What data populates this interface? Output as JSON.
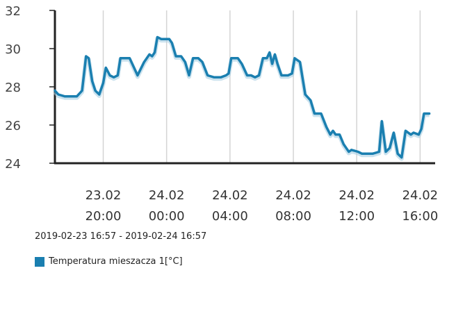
{
  "chart_data": {
    "type": "line",
    "title": "",
    "xlabel": "",
    "ylabel": "",
    "ylim": [
      24,
      32
    ],
    "yticks": [
      "32",
      "30",
      "28",
      "26",
      "24"
    ],
    "xlim": [
      "2019-02-23 16:57",
      "2019-02-24 16:57"
    ],
    "xticks": [
      {
        "date": "23.02",
        "time": "20:00",
        "at": "2019-02-23 20:00"
      },
      {
        "date": "24.02",
        "time": "00:00",
        "at": "2019-02-24 00:00"
      },
      {
        "date": "24.02",
        "time": "04:00",
        "at": "2019-02-24 04:00"
      },
      {
        "date": "24.02",
        "time": "08:00",
        "at": "2019-02-24 08:00"
      },
      {
        "date": "24.02",
        "time": "12:00",
        "at": "2019-02-24 12:00"
      },
      {
        "date": "24.02",
        "time": "16:00",
        "at": "2019-02-24 16:00"
      }
    ],
    "grid": "vertical",
    "series": [
      {
        "name": "Temperatura mieszacza 1[°C]",
        "color": "#1a7fb0",
        "points": [
          [
            "2019-02-23 16:57",
            27.8
          ],
          [
            "2019-02-23 17:10",
            27.6
          ],
          [
            "2019-02-23 17:35",
            27.5
          ],
          [
            "2019-02-23 18:00",
            27.5
          ],
          [
            "2019-02-23 18:20",
            27.5
          ],
          [
            "2019-02-23 18:40",
            27.8
          ],
          [
            "2019-02-23 18:55",
            29.6
          ],
          [
            "2019-02-23 19:05",
            29.5
          ],
          [
            "2019-02-23 19:18",
            28.3
          ],
          [
            "2019-02-23 19:30",
            27.8
          ],
          [
            "2019-02-23 19:45",
            27.6
          ],
          [
            "2019-02-23 20:00",
            28.2
          ],
          [
            "2019-02-23 20:10",
            29.0
          ],
          [
            "2019-02-23 20:25",
            28.6
          ],
          [
            "2019-02-23 20:40",
            28.5
          ],
          [
            "2019-02-23 20:55",
            28.6
          ],
          [
            "2019-02-23 21:05",
            29.5
          ],
          [
            "2019-02-23 21:20",
            29.5
          ],
          [
            "2019-02-23 21:40",
            29.5
          ],
          [
            "2019-02-23 22:10",
            28.6
          ],
          [
            "2019-02-23 22:35",
            29.3
          ],
          [
            "2019-02-23 22:55",
            29.7
          ],
          [
            "2019-02-23 23:05",
            29.6
          ],
          [
            "2019-02-23 23:15",
            29.8
          ],
          [
            "2019-02-23 23:25",
            30.6
          ],
          [
            "2019-02-23 23:40",
            30.5
          ],
          [
            "2019-02-24 00:10",
            30.5
          ],
          [
            "2019-02-24 00:20",
            30.3
          ],
          [
            "2019-02-24 00:35",
            29.6
          ],
          [
            "2019-02-24 00:55",
            29.6
          ],
          [
            "2019-02-24 01:10",
            29.3
          ],
          [
            "2019-02-24 01:25",
            28.6
          ],
          [
            "2019-02-24 01:40",
            29.5
          ],
          [
            "2019-02-24 02:00",
            29.5
          ],
          [
            "2019-02-24 02:15",
            29.3
          ],
          [
            "2019-02-24 02:35",
            28.6
          ],
          [
            "2019-02-24 03:00",
            28.5
          ],
          [
            "2019-02-24 03:25",
            28.5
          ],
          [
            "2019-02-24 03:45",
            28.6
          ],
          [
            "2019-02-24 03:55",
            28.7
          ],
          [
            "2019-02-24 04:05",
            29.5
          ],
          [
            "2019-02-24 04:30",
            29.5
          ],
          [
            "2019-02-24 04:45",
            29.2
          ],
          [
            "2019-02-24 05:05",
            28.6
          ],
          [
            "2019-02-24 05:20",
            28.6
          ],
          [
            "2019-02-24 05:35",
            28.5
          ],
          [
            "2019-02-24 05:50",
            28.6
          ],
          [
            "2019-02-24 06:05",
            29.5
          ],
          [
            "2019-02-24 06:20",
            29.5
          ],
          [
            "2019-02-24 06:30",
            29.8
          ],
          [
            "2019-02-24 06:40",
            29.2
          ],
          [
            "2019-02-24 06:50",
            29.7
          ],
          [
            "2019-02-24 07:00",
            29.2
          ],
          [
            "2019-02-24 07:15",
            28.6
          ],
          [
            "2019-02-24 07:40",
            28.6
          ],
          [
            "2019-02-24 07:55",
            28.7
          ],
          [
            "2019-02-24 08:05",
            29.5
          ],
          [
            "2019-02-24 08:25",
            29.3
          ],
          [
            "2019-02-24 08:45",
            27.6
          ],
          [
            "2019-02-24 09:05",
            27.3
          ],
          [
            "2019-02-24 09:20",
            26.6
          ],
          [
            "2019-02-24 09:45",
            26.6
          ],
          [
            "2019-02-24 10:05",
            25.9
          ],
          [
            "2019-02-24 10:20",
            25.5
          ],
          [
            "2019-02-24 10:30",
            25.7
          ],
          [
            "2019-02-24 10:40",
            25.5
          ],
          [
            "2019-02-24 10:55",
            25.5
          ],
          [
            "2019-02-24 11:10",
            25.0
          ],
          [
            "2019-02-24 11:30",
            24.6
          ],
          [
            "2019-02-24 11:40",
            24.7
          ],
          [
            "2019-02-24 12:05",
            24.6
          ],
          [
            "2019-02-24 12:20",
            24.5
          ],
          [
            "2019-02-24 13:00",
            24.5
          ],
          [
            "2019-02-24 13:25",
            24.6
          ],
          [
            "2019-02-24 13:35",
            26.2
          ],
          [
            "2019-02-24 13:50",
            24.6
          ],
          [
            "2019-02-24 14:05",
            24.8
          ],
          [
            "2019-02-24 14:20",
            25.6
          ],
          [
            "2019-02-24 14:35",
            24.5
          ],
          [
            "2019-02-24 14:50",
            24.3
          ],
          [
            "2019-02-24 15:05",
            25.7
          ],
          [
            "2019-02-24 15:25",
            25.5
          ],
          [
            "2019-02-24 15:35",
            25.6
          ],
          [
            "2019-02-24 15:55",
            25.5
          ],
          [
            "2019-02-24 16:05",
            25.8
          ],
          [
            "2019-02-24 16:15",
            26.6
          ],
          [
            "2019-02-24 16:35",
            26.6
          ]
        ]
      }
    ]
  },
  "range_label": "2019-02-23 16:57 - 2019-02-24 16:57",
  "legend": {
    "items": [
      {
        "label": "Temperatura mieszacza 1[°C]",
        "color": "#1a7fb0"
      }
    ]
  }
}
